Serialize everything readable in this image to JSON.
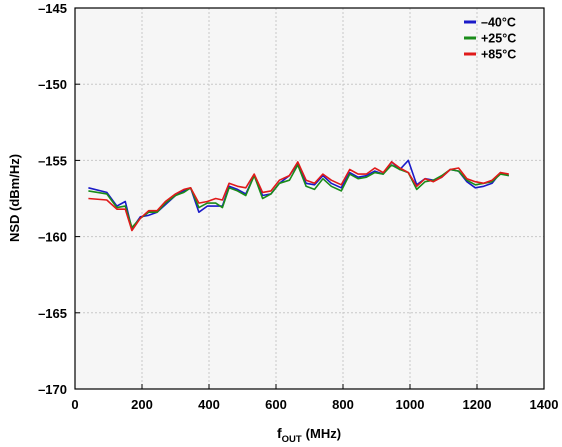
{
  "chart_data": {
    "type": "line",
    "xlabel": "f",
    "xlabel_sub": "OUT",
    "xlabel_unit": "(MHz)",
    "ylabel": "NSD (dBm/Hz)",
    "xlim": [
      0,
      1400
    ],
    "ylim": [
      -170,
      -145
    ],
    "x_ticks": [
      0,
      200,
      400,
      600,
      800,
      1000,
      1200,
      1400
    ],
    "y_ticks": [
      -145,
      -150,
      -155,
      -160,
      -165,
      -170
    ],
    "x_tick_labels": [
      "0",
      "200",
      "400",
      "600",
      "800",
      "1000",
      "1200",
      "1400"
    ],
    "y_tick_labels": [
      "–145",
      "–150",
      "–155",
      "–160",
      "–165",
      "–170"
    ],
    "grid": true,
    "legend_position": "top-right",
    "x": [
      40,
      95,
      125,
      150,
      170,
      195,
      220,
      245,
      270,
      300,
      325,
      345,
      370,
      395,
      420,
      440,
      460,
      485,
      510,
      535,
      560,
      585,
      610,
      640,
      665,
      690,
      715,
      740,
      765,
      795,
      820,
      845,
      870,
      895,
      920,
      945,
      970,
      995,
      1020,
      1045,
      1070,
      1095,
      1120,
      1145,
      1170,
      1195,
      1220,
      1245,
      1270,
      1295
    ],
    "series": [
      {
        "name": "–40°C",
        "color": "#1a1ac8",
        "values": [
          -156.8,
          -157.1,
          -158.0,
          -157.7,
          -159.5,
          -158.7,
          -158.6,
          -158.4,
          -157.9,
          -157.3,
          -157.0,
          -156.8,
          -158.4,
          -158.0,
          -158.0,
          -158.0,
          -156.7,
          -156.9,
          -157.2,
          -156.0,
          -157.3,
          -157.2,
          -156.5,
          -156.0,
          -155.2,
          -156.5,
          -156.6,
          -156.0,
          -156.5,
          -156.8,
          -155.8,
          -156.1,
          -156.0,
          -155.7,
          -155.9,
          -155.1,
          -155.6,
          -155.0,
          -156.6,
          -156.2,
          -156.3,
          -156.1,
          -155.6,
          -155.7,
          -156.4,
          -156.8,
          -156.7,
          -156.5,
          -155.8,
          -156.0
        ]
      },
      {
        "name": "+25°C",
        "color": "#1a8c1a",
        "values": [
          -157.0,
          -157.2,
          -158.1,
          -158.0,
          -159.4,
          -158.8,
          -158.4,
          -158.4,
          -157.8,
          -157.3,
          -157.1,
          -156.8,
          -158.1,
          -157.8,
          -157.8,
          -158.1,
          -156.8,
          -157.0,
          -157.3,
          -156.0,
          -157.5,
          -157.2,
          -156.5,
          -156.3,
          -155.3,
          -156.7,
          -156.9,
          -156.2,
          -156.7,
          -157.0,
          -155.9,
          -156.2,
          -156.1,
          -155.8,
          -155.9,
          -155.3,
          -155.6,
          -155.8,
          -156.9,
          -156.4,
          -156.3,
          -156.0,
          -155.6,
          -155.7,
          -156.3,
          -156.6,
          -156.5,
          -156.4,
          -155.9,
          -156.0
        ]
      },
      {
        "name": "+85°C",
        "color": "#e01a1a",
        "values": [
          -157.5,
          -157.6,
          -158.2,
          -158.2,
          -159.6,
          -158.8,
          -158.3,
          -158.3,
          -157.7,
          -157.2,
          -156.9,
          -156.8,
          -157.8,
          -157.7,
          -157.5,
          -157.6,
          -156.5,
          -156.7,
          -156.8,
          -155.9,
          -157.1,
          -157.0,
          -156.3,
          -156.0,
          -155.1,
          -156.3,
          -156.5,
          -155.9,
          -156.3,
          -156.6,
          -155.6,
          -155.9,
          -155.9,
          -155.5,
          -155.8,
          -155.1,
          -155.5,
          -155.8,
          -156.7,
          -156.2,
          -156.4,
          -156.1,
          -155.6,
          -155.5,
          -156.2,
          -156.4,
          -156.5,
          -156.3,
          -155.8,
          -155.9
        ]
      }
    ]
  }
}
